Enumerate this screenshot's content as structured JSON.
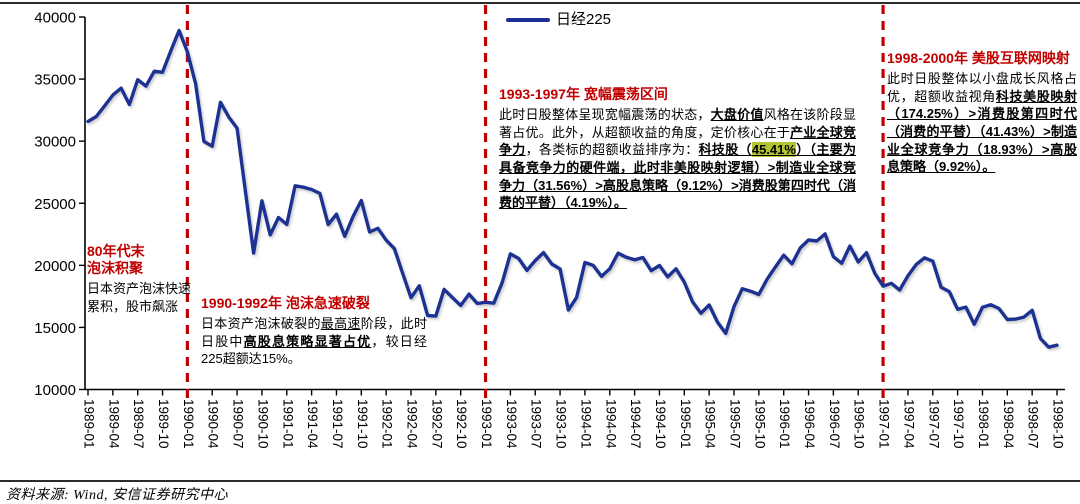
{
  "legend": {
    "label": "日经225"
  },
  "source": "资料来源: Wind, 安信证券研究中心",
  "colors": {
    "line": "#1E3093",
    "vline": "#C00000",
    "title_red": "#C00000",
    "highlight": "#b4c430",
    "axis": "#000000"
  },
  "chart_data": {
    "type": "line",
    "title": "",
    "xlabel": "",
    "ylabel": "",
    "grid": false,
    "legend_position": "top-center",
    "ylim": [
      10000,
      40000
    ],
    "yticks": [
      10000,
      15000,
      20000,
      25000,
      30000,
      35000,
      40000
    ],
    "x_start": "1989-01",
    "months_per_tick": 3,
    "x_tick_labels": [
      "1989-01",
      "1989-04",
      "1989-07",
      "1989-10",
      "1990-01",
      "1990-04",
      "1990-07",
      "1990-10",
      "1991-01",
      "1991-04",
      "1991-07",
      "1991-10",
      "1992-01",
      "1992-04",
      "1992-07",
      "1992-10",
      "1993-01",
      "1993-04",
      "1993-07",
      "1993-10",
      "1994-01",
      "1994-04",
      "1994-07",
      "1994-10",
      "1995-01",
      "1995-04",
      "1995-07",
      "1995-10",
      "1996-01",
      "1996-04",
      "1996-07",
      "1996-10",
      "1997-01",
      "1997-04",
      "1997-07",
      "1997-10",
      "1998-01",
      "1998-04",
      "1998-07",
      "1998-10"
    ],
    "vlines": [
      "1990-01",
      "1993-01",
      "1997-01"
    ],
    "series": [
      {
        "name": "日经225",
        "values": [
          31581,
          31986,
          32839,
          33714,
          34267,
          32949,
          34954,
          34431,
          35637,
          35549,
          37269,
          38916,
          37189,
          34592,
          29980,
          29585,
          33131,
          31940,
          31036,
          25978,
          20984,
          25194,
          22455,
          23849,
          23293,
          26409,
          26292,
          26111,
          25790,
          23291,
          24121,
          22336,
          23916,
          25222,
          22687,
          22984,
          22023,
          21339,
          19346,
          17391,
          18348,
          15952,
          15910,
          18061,
          17399,
          16767,
          17684,
          16925,
          17024,
          16953,
          18591,
          20919,
          20552,
          19590,
          20380,
          21027,
          20106,
          19703,
          16406,
          17417,
          20229,
          19997,
          19112,
          19725,
          20974,
          20644,
          20449,
          20629,
          19564,
          19990,
          19070,
          19723,
          18650,
          17053,
          16140,
          16807,
          15437,
          14517,
          16677,
          18117,
          17913,
          17655,
          18880,
          19868,
          20813,
          20125,
          21407,
          22041,
          21956,
          22531,
          20693,
          20167,
          21556,
          20267,
          21020,
          19361,
          18330,
          18557,
          18003,
          19151,
          20069,
          20605,
          20331,
          18229,
          17888,
          16459,
          16636,
          15259,
          16628,
          16832,
          16527,
          15641,
          15671,
          15830,
          16379,
          14108,
          13406,
          13565
        ]
      }
    ]
  },
  "annotations": [
    {
      "title": "80年代末\n泡沫积聚",
      "segments": [
        {
          "t": "日本资产泡沫快速累积，股市飙涨",
          "s": "n"
        }
      ]
    },
    {
      "title": "1990-1992年  泡沫急速破裂",
      "segments": [
        {
          "t": "日本资产泡沫破裂的",
          "s": "n"
        },
        {
          "t": "最高速",
          "s": "u"
        },
        {
          "t": "阶段，此时日股中",
          "s": "n"
        },
        {
          "t": "高股息策略显著占优",
          "s": "bu"
        },
        {
          "t": "，较日经225超额达15%。",
          "s": "n"
        }
      ]
    },
    {
      "title": "1993-1997年  宽幅震荡区间",
      "segments": [
        {
          "t": "此时日股整体呈现宽幅震荡的状态，",
          "s": "n"
        },
        {
          "t": "大盘价值",
          "s": "bu"
        },
        {
          "t": "风格在该阶段显著占优。此外，从超额收益的角度，定价核心在于",
          "s": "n"
        },
        {
          "t": "产业全球竞争力",
          "s": "bu"
        },
        {
          "t": "，各类标的超额收益排序为：",
          "s": "n"
        },
        {
          "t": "科技股（",
          "s": "bu"
        },
        {
          "t": "45.41%",
          "s": "buh"
        },
        {
          "t": "）（主要为具备竞争力的硬件端，此时非美股映射逻辑）>制造业全球竞争力（31.56%）>高股息策略（9.12%）>消费股第四时代（消费的平替）（4.19%）。",
          "s": "bu"
        }
      ]
    },
    {
      "title": "1998-2000年  美股互联网映射",
      "segments": [
        {
          "t": "此时日股整体以小盘成长风格占优，超额收益视角",
          "s": "n"
        },
        {
          "t": "科技美股映射（174.25%）>消费股第四时代（消费的平替）（41.43%）>制造业全球竞争力（18.93%）>高股息策略（9.92%）。",
          "s": "bu"
        }
      ]
    }
  ]
}
